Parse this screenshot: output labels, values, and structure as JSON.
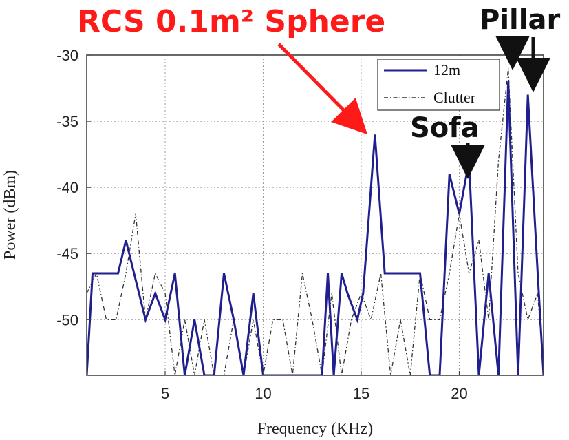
{
  "chart_data": {
    "type": "line",
    "xlabel": "Frequency (KHz)",
    "ylabel": "Power (dBm)",
    "xlim": [
      1,
      24.3
    ],
    "ylim": [
      -54.2,
      -30
    ],
    "xticks": [
      5,
      10,
      15,
      20
    ],
    "yticks": [
      -30,
      -35,
      -40,
      -45,
      -50
    ],
    "grid": true,
    "legend_position": "top-right",
    "series": [
      {
        "name": "12m",
        "style": "solid",
        "color": "#1f1f8f",
        "x": [
          1.0,
          1.3,
          1.6,
          2.6,
          3.0,
          4.0,
          4.5,
          5.0,
          5.5,
          6.0,
          6.5,
          7.0,
          7.5,
          8.0,
          8.5,
          9.0,
          9.5,
          10.0,
          13.0,
          13.3,
          13.6,
          14.0,
          14.3,
          14.8,
          15.1,
          15.7,
          16.2,
          17.0,
          18.0,
          18.5,
          19.0,
          19.5,
          20.0,
          20.5,
          21.0,
          21.5,
          22.0,
          22.5,
          23.0,
          23.5,
          24.0,
          24.3
        ],
        "y": [
          -54.2,
          -46.5,
          -46.5,
          -46.5,
          -44,
          -50,
          -48,
          -50,
          -46.5,
          -54.2,
          -50,
          -54.2,
          -54.2,
          -46.5,
          -50,
          -54.2,
          -48,
          -54.2,
          -54.2,
          -46.5,
          -54.2,
          -46.5,
          -48,
          -50,
          -48,
          -36,
          -46.5,
          -46.5,
          -46.5,
          -54.2,
          -54.2,
          -39,
          -42,
          -38,
          -54.2,
          -46.5,
          -54.2,
          -32,
          -54.2,
          -33,
          -46.5,
          -54.2
        ]
      },
      {
        "name": "Clutter",
        "style": "dash-dot",
        "color": "#333333",
        "x": [
          1.0,
          1.5,
          2.0,
          2.5,
          3.0,
          3.5,
          4.0,
          4.5,
          5.0,
          5.5,
          6.0,
          6.5,
          7.0,
          7.5,
          8.0,
          8.5,
          9.0,
          9.5,
          10.0,
          10.5,
          11.0,
          11.5,
          12.0,
          12.5,
          13.0,
          13.5,
          14.0,
          14.5,
          15.0,
          15.5,
          16.0,
          16.5,
          17.0,
          17.5,
          18.0,
          18.5,
          19.0,
          19.5,
          20.0,
          20.5,
          21.0,
          21.5,
          22.0,
          22.5,
          23.0,
          23.5,
          24.0,
          24.3
        ],
        "y": [
          -48,
          -46.5,
          -50,
          -50,
          -46.5,
          -42,
          -50,
          -46.5,
          -48,
          -54.2,
          -50,
          -54.2,
          -50,
          -54.2,
          -54.2,
          -50,
          -54.2,
          -50,
          -54.2,
          -50,
          -50,
          -54.2,
          -46.5,
          -50,
          -54.2,
          -48,
          -54.2,
          -50,
          -48,
          -50,
          -46.5,
          -54.2,
          -50,
          -54.2,
          -46.5,
          -50,
          -50,
          -46.5,
          -42,
          -46.5,
          -44,
          -50,
          -38,
          -31,
          -46.5,
          -50,
          -48,
          -54.2
        ]
      }
    ],
    "annotations": [
      {
        "id": "sphere",
        "text": "RCS 0.1m² Sphere",
        "x": 15.7,
        "y": -36
      },
      {
        "id": "sofa",
        "text": "Sofa",
        "x": 20.0,
        "y": -39.4
      },
      {
        "id": "pillar",
        "text": "Pillar",
        "x": [
          22.4,
          23.3
        ],
        "y": [
          -31.2,
          -32.7
        ]
      }
    ]
  }
}
